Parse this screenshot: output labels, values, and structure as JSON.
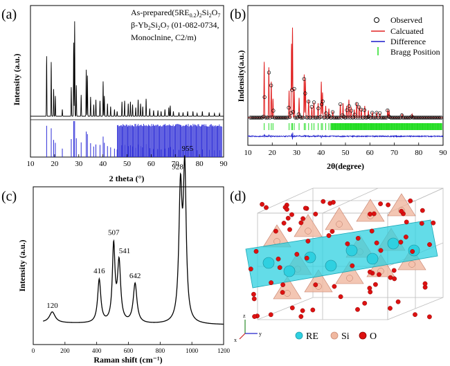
{
  "panels": {
    "a": {
      "label": "(a)",
      "legend_line1": "As-prepared(5RE",
      "legend_line1_sub": "0.2",
      "legend_line1_rest": ")",
      "legend_line1_sub2": "2",
      "legend_line1_rest2": "Si",
      "legend_line1_sub3": "2",
      "legend_line1_rest3": "O",
      "legend_line1_sub4": "7",
      "legend_line2": "β-Yb",
      "legend_line2_sub": "2",
      "legend_line2_rest": "Si",
      "legend_line2_sub2": "2",
      "legend_line2_rest2": "O",
      "legend_line2_sub3": "7",
      "legend_line2_rest3": " (01-082-0734,",
      "legend_line3": "Monoclnine, C2/m)"
    },
    "b": {
      "label": "(b)",
      "legend": [
        "Observed",
        "Calcuated",
        "Difference",
        "Bragg Position"
      ]
    },
    "c": {
      "label": "(c)"
    },
    "d": {
      "label": "(d)",
      "legend": [
        "RE",
        "Si",
        "O"
      ],
      "axes": [
        "z",
        "x",
        "y"
      ]
    }
  },
  "colors": {
    "pattern": "#000000",
    "reference": "#2b2bd6",
    "calc": "#e02020",
    "diff": "#1a1acc",
    "bragg": "#22dd22",
    "re": "#2fd0e0",
    "si": "#f0b8a0",
    "o": "#dd1111"
  },
  "chart_data": [
    {
      "type": "line",
      "panel": "a",
      "xlabel": "2 theta (°)",
      "ylabel": "Intensity (a.u.)",
      "xlim": [
        10,
        90
      ],
      "xticks": [
        "10",
        "20",
        "30",
        "40",
        "50",
        "60",
        "70",
        "80",
        "90"
      ],
      "peaks_2theta": [
        16.7,
        18.6,
        19.6,
        20.3,
        23.2,
        26.9,
        27.9,
        28.3,
        29.0,
        31.0,
        33.1,
        33.6,
        34.9,
        36.2,
        37.1,
        38.8,
        40.1,
        40.6,
        41.9,
        43.2,
        44.8,
        45.9,
        47.9,
        49.0,
        50.5,
        51.4,
        52.3,
        53.6,
        54.6,
        55.6,
        56.5,
        57.9,
        59.4,
        61.0,
        62.8,
        64.1,
        65.7,
        67.3,
        67.9,
        69.2,
        71.5,
        73.2,
        75.1,
        77.3,
        79.0,
        81.2,
        84.0,
        86.2,
        88.3
      ],
      "peak_intensity": [
        0.62,
        0.56,
        0.28,
        0.21,
        0.07,
        0.3,
        0.76,
        0.98,
        0.32,
        0.22,
        0.48,
        0.42,
        0.2,
        0.12,
        0.17,
        0.16,
        0.36,
        0.21,
        0.13,
        0.1,
        0.07,
        0.05,
        0.15,
        0.16,
        0.13,
        0.15,
        0.12,
        0.09,
        0.17,
        0.13,
        0.1,
        0.18,
        0.08,
        0.06,
        0.06,
        0.05,
        0.07,
        0.09,
        0.11,
        0.05,
        0.04,
        0.04,
        0.05,
        0.05,
        0.03,
        0.05,
        0.04,
        0.03,
        0.03
      ]
    },
    {
      "type": "line",
      "panel": "b",
      "xlabel": "2θ(degree)",
      "ylabel": "Indensity(a.u.)",
      "xlim": [
        10,
        90
      ],
      "xticks": [
        "10",
        "20",
        "30",
        "40",
        "50",
        "60",
        "70",
        "80",
        "90"
      ],
      "series": [
        {
          "name": "Observed"
        },
        {
          "name": "Calcuated"
        },
        {
          "name": "Difference"
        },
        {
          "name": "Bragg Position"
        }
      ],
      "peaks_2theta": [
        16.7,
        18.6,
        19.6,
        20.3,
        26.9,
        27.9,
        28.3,
        29.0,
        31.0,
        33.1,
        33.6,
        34.9,
        36.2,
        37.1,
        38.8,
        40.1,
        40.6,
        41.9,
        43.2,
        44.8,
        47.9,
        49.0,
        50.5,
        51.4,
        52.3,
        53.6,
        54.6,
        55.6,
        56.5,
        57.9,
        59.4,
        61.0,
        62.8,
        64.1,
        67.3,
        67.9,
        73.2,
        77.3
      ],
      "peak_intensity": [
        0.62,
        0.56,
        0.4,
        0.21,
        0.3,
        0.82,
        1.0,
        0.32,
        0.22,
        0.48,
        0.42,
        0.2,
        0.12,
        0.17,
        0.16,
        0.4,
        0.28,
        0.13,
        0.1,
        0.07,
        0.15,
        0.16,
        0.13,
        0.2,
        0.12,
        0.09,
        0.17,
        0.13,
        0.1,
        0.13,
        0.08,
        0.06,
        0.06,
        0.05,
        0.09,
        0.08,
        0.04,
        0.04
      ]
    },
    {
      "type": "line",
      "panel": "c",
      "xlabel": "Raman shift (cm⁻¹)",
      "ylabel": "Intensity (a.u.)",
      "xlim": [
        0,
        1200
      ],
      "xticks": [
        "0",
        "200",
        "400",
        "600",
        "800",
        "1000",
        "1200"
      ],
      "peaks": [
        {
          "x": 120,
          "label": "120",
          "height": 0.06
        },
        {
          "x": 416,
          "label": "416",
          "height": 0.24
        },
        {
          "x": 507,
          "label": "507",
          "height": 0.42
        },
        {
          "x": 541,
          "label": "541",
          "height": 0.33
        },
        {
          "x": 642,
          "label": "642",
          "height": 0.22
        },
        {
          "x": 928,
          "label": "928",
          "height": 0.72
        },
        {
          "x": 955,
          "label": "955",
          "height": 0.82
        }
      ]
    }
  ]
}
